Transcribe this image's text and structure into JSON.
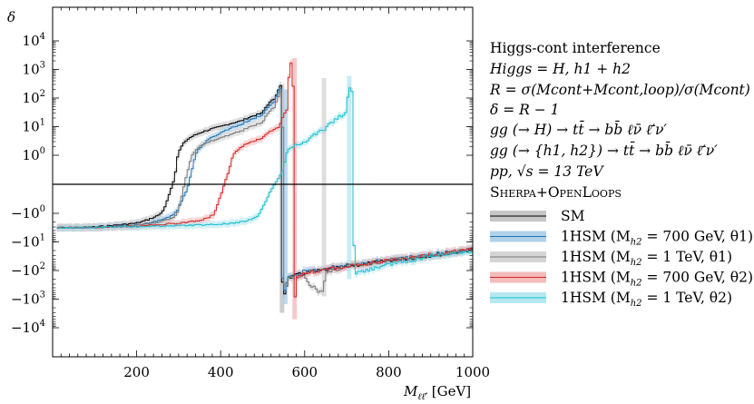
{
  "chart_data": {
    "type": "line",
    "ylabel": "δ",
    "xlabel": "M",
    "xlabel_sub": "ℓℓ̄′",
    "xlabel_unit": " [GeV]",
    "xlim": [
      0,
      1000
    ],
    "ylim_symlog": [
      -40000,
      60000
    ],
    "xticks": [
      200,
      400,
      600,
      800,
      1000
    ],
    "yticks": [
      {
        "value": 10000,
        "label": "10",
        "exp": "4"
      },
      {
        "value": 1000,
        "label": "10",
        "exp": "3"
      },
      {
        "value": 100,
        "label": "10",
        "exp": "2"
      },
      {
        "value": 10,
        "label": "10",
        "exp": "1"
      },
      {
        "value": 1,
        "label": "10",
        "exp": "0"
      },
      {
        "value": -1,
        "label": "−10",
        "exp": "0"
      },
      {
        "value": -10,
        "label": "−10",
        "exp": "1"
      },
      {
        "value": -100,
        "label": "−10",
        "exp": "2"
      },
      {
        "value": -1000,
        "label": "−10",
        "exp": "3"
      },
      {
        "value": -10000,
        "label": "−10",
        "exp": "4"
      }
    ],
    "text_lines": [
      "Higgs-cont interference",
      "Higgs = H, h1 + h2",
      "R = σ(Mcont+Mcont,loop)/σ(Mcont)",
      "δ = R − 1",
      "gg (→ H) → tt̄ → bb̄ ℓν̄ ℓ̄′ν′",
      "gg (→ {h1, h2}) → tt̄ → bb̄ ℓν̄ ℓ̄′ν′",
      "pp, √s = 13 TeV",
      "Sherpa+OpenLoops"
    ],
    "series": [
      {
        "name": "SM",
        "color": "#000000",
        "band": "#c0c0c0",
        "x": [
          10,
          100,
          200,
          250,
          270,
          290,
          300,
          320,
          350,
          400,
          450,
          500,
          530,
          545,
          550,
          560,
          600,
          700,
          800,
          900,
          1000
        ],
        "y": [
          -3.2,
          -3.0,
          -2.2,
          -1.2,
          -0.7,
          0.2,
          1.2,
          3.5,
          6,
          10,
          16,
          30,
          100,
          300,
          -800,
          -180,
          -120,
          -70,
          -45,
          -30,
          -18
        ]
      },
      {
        "name": "1HSM (Mh2 = 700 GeV, θ1)",
        "color": "#1f77b4",
        "band": "#a8cbe8",
        "x": [
          10,
          100,
          200,
          270,
          300,
          320,
          340,
          360,
          400,
          450,
          500,
          530,
          545,
          550,
          560,
          600,
          700,
          800,
          900,
          1000
        ],
        "y": [
          -3.2,
          -3.1,
          -2.6,
          -1.5,
          -0.8,
          -0.2,
          1.0,
          2.5,
          6,
          12,
          25,
          80,
          250,
          -600,
          -160,
          -110,
          -65,
          -42,
          -28,
          -18
        ]
      },
      {
        "name": "1HSM (Mh2 = 1 TeV, θ1)",
        "color": "#777777",
        "band": "#d0d0d0",
        "x": [
          10,
          100,
          200,
          280,
          300,
          320,
          350,
          400,
          450,
          500,
          530,
          545,
          555,
          560,
          600,
          640,
          650,
          700,
          800,
          900,
          1000
        ],
        "y": [
          -3.2,
          -3.1,
          -2.7,
          -1.6,
          -0.9,
          0.4,
          2,
          4,
          7,
          14,
          50,
          180,
          -500,
          -180,
          -160,
          -600,
          -130,
          -70,
          -45,
          -28,
          -18
        ]
      },
      {
        "name": "1HSM (Mh2 = 700 GeV, θ2)",
        "color": "#d62728",
        "band": "#f2b4b4",
        "x": [
          10,
          100,
          200,
          300,
          350,
          380,
          400,
          420,
          450,
          500,
          540,
          560,
          570,
          575,
          580,
          600,
          700,
          800,
          900,
          1000
        ],
        "y": [
          -3.2,
          -3.1,
          -2.8,
          -2.2,
          -1.8,
          -1.2,
          -0.4,
          0.5,
          2,
          4,
          10,
          40,
          2000,
          -1500,
          -170,
          -120,
          -70,
          -45,
          -28,
          -18
        ]
      },
      {
        "name": "1HSM (Mh2 = 1 TeV, θ2)",
        "color": "#17becf",
        "band": "#aee6ee",
        "x": [
          10,
          100,
          200,
          300,
          400,
          450,
          480,
          500,
          520,
          550,
          560,
          600,
          650,
          700,
          710,
          720,
          800,
          900,
          1000
        ],
        "y": [
          -3.2,
          -3.1,
          -2.9,
          -2.7,
          -2.4,
          -2.0,
          -1.5,
          -0.8,
          -0.2,
          0.5,
          1.5,
          3,
          8,
          30,
          300,
          -120,
          -60,
          -30,
          -20
        ]
      }
    ],
    "legend": {
      "placement": "right",
      "entries": [
        {
          "main": "SM",
          "sub": "",
          "tail": ""
        },
        {
          "main": "1HSM (M",
          "sub": "h2",
          "tail": " = 700 GeV, θ1)"
        },
        {
          "main": "1HSM (M",
          "sub": "h2",
          "tail": " = 1 TeV, θ1)"
        },
        {
          "main": "1HSM (M",
          "sub": "h2",
          "tail": " = 700 GeV, θ2)"
        },
        {
          "main": "1HSM (M",
          "sub": "h2",
          "tail": " = 1 TeV, θ2)"
        }
      ]
    }
  }
}
